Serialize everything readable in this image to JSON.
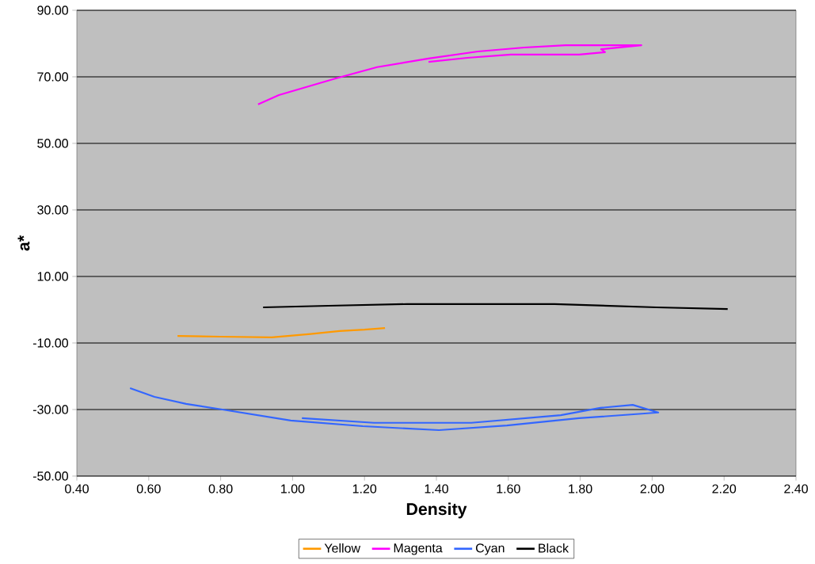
{
  "chart_data": {
    "type": "line",
    "xlabel": "Density",
    "ylabel": "a*",
    "series": [
      {
        "name": "Yellow",
        "color": "#ff9900",
        "x": [
          0.68,
          0.8,
          0.942,
          1.05,
          1.131,
          1.2,
          1.257
        ],
        "values": [
          -7.9,
          -8.1,
          -8.3,
          -7.3,
          -6.4,
          -6.0,
          -5.5
        ]
      },
      {
        "name": "Magenta",
        "color": "#ff00ff",
        "x": [
          0.904,
          0.962,
          1.12,
          1.235,
          1.378,
          1.515,
          1.644,
          1.759,
          1.97,
          1.858,
          1.869,
          1.797,
          1.607,
          1.486,
          1.378
        ],
        "values": [
          61.7,
          64.5,
          69.5,
          72.9,
          75.5,
          77.6,
          78.8,
          79.5,
          79.5,
          78.3,
          77.4,
          76.7,
          76.7,
          75.7,
          74.5
        ]
      },
      {
        "name": "Cyan",
        "color": "#3366ff",
        "x": [
          0.548,
          0.616,
          0.704,
          0.805,
          0.995,
          1.195,
          1.407,
          1.596,
          1.797,
          2.017,
          1.946,
          1.856,
          1.746,
          1.497,
          1.226,
          1.026
        ],
        "values": [
          -23.6,
          -26.2,
          -28.3,
          -30.0,
          -33.3,
          -35.0,
          -36.2,
          -34.8,
          -32.6,
          -30.9,
          -28.6,
          -29.5,
          -31.7,
          -34.0,
          -34.0,
          -32.6
        ]
      },
      {
        "name": "Black",
        "color": "#000000",
        "x": [
          0.918,
          1.1,
          1.318,
          1.5,
          1.728,
          2.012,
          2.21
        ],
        "values": [
          0.7,
          1.2,
          1.7,
          1.7,
          1.7,
          0.7,
          0.2
        ]
      }
    ],
    "xlim": [
      0.4,
      2.4
    ],
    "xticks": [
      {
        "value": 0.4,
        "label": "0.40"
      },
      {
        "value": 0.6,
        "label": "0.60"
      },
      {
        "value": 0.8,
        "label": "0.80"
      },
      {
        "value": 1.0,
        "label": "1.00"
      },
      {
        "value": 1.2,
        "label": "1.20"
      },
      {
        "value": 1.4,
        "label": "1.40"
      },
      {
        "value": 1.6,
        "label": "1.60"
      },
      {
        "value": 1.8,
        "label": "1.80"
      },
      {
        "value": 2.0,
        "label": "2.00"
      },
      {
        "value": 2.2,
        "label": "2.20"
      },
      {
        "value": 2.4,
        "label": "2.40"
      }
    ],
    "ylim": [
      -50,
      90
    ],
    "yticks": [
      {
        "value": -50,
        "label": "-50.00"
      },
      {
        "value": -30,
        "label": "-30.00"
      },
      {
        "value": -10,
        "label": "-10.00"
      },
      {
        "value": 10,
        "label": "10.00"
      },
      {
        "value": 30,
        "label": "30.00"
      },
      {
        "value": 50,
        "label": "50.00"
      },
      {
        "value": 70,
        "label": "70.00"
      },
      {
        "value": 90,
        "label": "90.00"
      }
    ],
    "grid": "y",
    "legend": "bottom",
    "marker": "none",
    "line_style": "solid"
  }
}
